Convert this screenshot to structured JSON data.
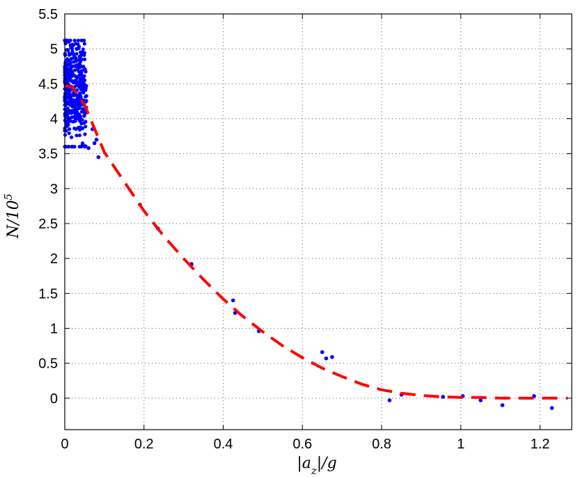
{
  "chart_data": {
    "type": "scatter",
    "xlabel": "|a_z|/g",
    "ylabel": "N/10^5",
    "xlim": [
      0,
      1.28
    ],
    "ylim": [
      -0.45,
      5.5
    ],
    "x_ticks": [
      "0",
      "0.2",
      "0.4",
      "0.6",
      "0.8",
      "1",
      "1.2"
    ],
    "y_ticks": [
      "0",
      "0.5",
      "1",
      "1.5",
      "2",
      "2.5",
      "3",
      "3.5",
      "4",
      "4.5",
      "5",
      "5.5"
    ],
    "grid": true,
    "series": [
      {
        "style": "scatter",
        "color": "#0000ff",
        "x": [
          0.19,
          0.235,
          0.32,
          0.425,
          0.43,
          0.49,
          0.65,
          0.66,
          0.675,
          0.82,
          0.85,
          0.955,
          1.005,
          1.05,
          1.105,
          1.185,
          1.23,
          0.085,
          0.08,
          0.075,
          0.07,
          0.06,
          0.055,
          0.05,
          0.045,
          0.04,
          0.035,
          0.03,
          0.025,
          0.02,
          0.015,
          0.01,
          0.005,
          0.002
        ],
        "y": [
          2.77,
          2.43,
          1.92,
          1.4,
          1.22,
          0.96,
          0.66,
          0.57,
          0.59,
          -0.03,
          0.05,
          0.02,
          0.03,
          -0.03,
          -0.1,
          0.03,
          -0.14,
          3.45,
          3.7,
          3.65,
          3.85,
          3.58,
          4.1,
          4.55,
          3.62,
          4.95,
          4.05,
          5.0,
          4.35,
          4.75,
          5.05,
          5.1,
          4.6,
          3.6
        ]
      },
      {
        "style": "dashed-line",
        "color": "#ff0000",
        "x": [
          0,
          0.02,
          0.05,
          0.1,
          0.15,
          0.2,
          0.25,
          0.3,
          0.35,
          0.4,
          0.45,
          0.5,
          0.55,
          0.6,
          0.65,
          0.7,
          0.75,
          0.8,
          0.85,
          0.9,
          0.95,
          1.0,
          1.05,
          1.1,
          1.15,
          1.2,
          1.27
        ],
        "y": [
          4.47,
          4.45,
          4.2,
          3.52,
          3.1,
          2.68,
          2.32,
          2.0,
          1.7,
          1.42,
          1.17,
          0.95,
          0.75,
          0.58,
          0.43,
          0.31,
          0.2,
          0.12,
          0.07,
          0.04,
          0.02,
          0.01,
          0.01,
          0.0,
          0.0,
          0.0,
          0.0
        ]
      }
    ],
    "cluster": {
      "color": "#0000ff",
      "x_range": [
        0.0,
        0.055
      ],
      "y_center": 4.4,
      "y_spread": 0.35,
      "count": 420
    }
  }
}
